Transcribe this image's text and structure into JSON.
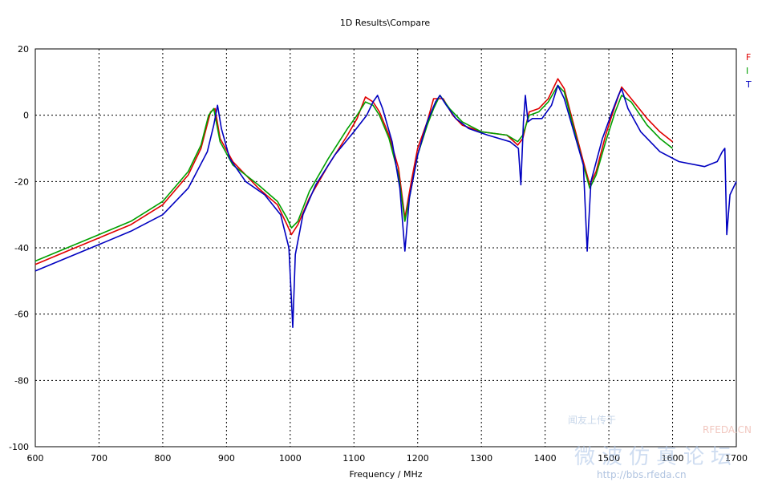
{
  "chart_data": {
    "type": "line",
    "title": "1D Results\\Compare",
    "xlabel": "Frequency / MHz",
    "ylabel": "",
    "xlim": [
      600,
      1700
    ],
    "ylim": [
      -100,
      20
    ],
    "xticks": [
      600,
      700,
      800,
      900,
      1000,
      1100,
      1200,
      1300,
      1400,
      1500,
      1600,
      1700
    ],
    "yticks": [
      -100,
      -80,
      -60,
      -40,
      -20,
      0,
      20
    ],
    "grid": true,
    "legend_placement": "right",
    "series": [
      {
        "name": "F",
        "color": "#e00000",
        "points": [
          [
            600,
            -45
          ],
          [
            650,
            -41
          ],
          [
            700,
            -37
          ],
          [
            750,
            -33
          ],
          [
            800,
            -27
          ],
          [
            840,
            -18
          ],
          [
            860,
            -10
          ],
          [
            875,
            1
          ],
          [
            882,
            2
          ],
          [
            890,
            -7
          ],
          [
            910,
            -14
          ],
          [
            950,
            -22
          ],
          [
            980,
            -27
          ],
          [
            995,
            -33
          ],
          [
            1002,
            -36
          ],
          [
            1012,
            -33
          ],
          [
            1030,
            -25
          ],
          [
            1060,
            -15
          ],
          [
            1090,
            -6
          ],
          [
            1105,
            -1
          ],
          [
            1118,
            5.5
          ],
          [
            1130,
            4
          ],
          [
            1140,
            1
          ],
          [
            1155,
            -6
          ],
          [
            1170,
            -16
          ],
          [
            1180,
            -31
          ],
          [
            1190,
            -20
          ],
          [
            1200,
            -10
          ],
          [
            1215,
            -2
          ],
          [
            1225,
            5
          ],
          [
            1240,
            5
          ],
          [
            1255,
            0
          ],
          [
            1270,
            -3
          ],
          [
            1300,
            -5
          ],
          [
            1340,
            -6
          ],
          [
            1357,
            -9
          ],
          [
            1365,
            -7
          ],
          [
            1375,
            1
          ],
          [
            1390,
            2
          ],
          [
            1405,
            5
          ],
          [
            1420,
            11
          ],
          [
            1430,
            8
          ],
          [
            1445,
            -3
          ],
          [
            1460,
            -14
          ],
          [
            1470,
            -21
          ],
          [
            1480,
            -17
          ],
          [
            1495,
            -6
          ],
          [
            1510,
            3
          ],
          [
            1520,
            8.5
          ],
          [
            1535,
            5
          ],
          [
            1560,
            -1
          ],
          [
            1580,
            -5
          ],
          [
            1600,
            -8
          ]
        ]
      },
      {
        "name": "I",
        "color": "#00a000",
        "points": [
          [
            600,
            -44
          ],
          [
            650,
            -40
          ],
          [
            700,
            -36
          ],
          [
            750,
            -32
          ],
          [
            800,
            -26
          ],
          [
            840,
            -17
          ],
          [
            860,
            -9
          ],
          [
            872,
            0
          ],
          [
            880,
            2
          ],
          [
            890,
            -8
          ],
          [
            910,
            -15
          ],
          [
            950,
            -21
          ],
          [
            980,
            -26
          ],
          [
            995,
            -31
          ],
          [
            1002,
            -34
          ],
          [
            1012,
            -32
          ],
          [
            1030,
            -23
          ],
          [
            1060,
            -13
          ],
          [
            1090,
            -4
          ],
          [
            1105,
            0
          ],
          [
            1118,
            4
          ],
          [
            1130,
            3
          ],
          [
            1140,
            0
          ],
          [
            1155,
            -7
          ],
          [
            1170,
            -18
          ],
          [
            1180,
            -32
          ],
          [
            1190,
            -22
          ],
          [
            1200,
            -12
          ],
          [
            1215,
            -3
          ],
          [
            1225,
            2
          ],
          [
            1235,
            6
          ],
          [
            1250,
            2
          ],
          [
            1270,
            -2
          ],
          [
            1300,
            -5
          ],
          [
            1340,
            -6
          ],
          [
            1357,
            -8
          ],
          [
            1365,
            -6
          ],
          [
            1375,
            0
          ],
          [
            1390,
            1
          ],
          [
            1405,
            4
          ],
          [
            1420,
            9
          ],
          [
            1430,
            7
          ],
          [
            1445,
            -4
          ],
          [
            1460,
            -15
          ],
          [
            1470,
            -22
          ],
          [
            1480,
            -18
          ],
          [
            1495,
            -8
          ],
          [
            1510,
            1
          ],
          [
            1520,
            6
          ],
          [
            1535,
            4
          ],
          [
            1560,
            -3
          ],
          [
            1580,
            -7
          ],
          [
            1600,
            -10
          ]
        ]
      },
      {
        "name": "T",
        "color": "#0000c0",
        "points": [
          [
            600,
            -47
          ],
          [
            650,
            -43
          ],
          [
            700,
            -39
          ],
          [
            750,
            -35
          ],
          [
            800,
            -30
          ],
          [
            840,
            -22
          ],
          [
            870,
            -11
          ],
          [
            880,
            -3
          ],
          [
            886,
            3
          ],
          [
            892,
            -4
          ],
          [
            905,
            -13
          ],
          [
            930,
            -20
          ],
          [
            960,
            -24
          ],
          [
            985,
            -30
          ],
          [
            998,
            -40
          ],
          [
            1004,
            -64
          ],
          [
            1008,
            -42
          ],
          [
            1020,
            -30
          ],
          [
            1040,
            -21
          ],
          [
            1070,
            -12
          ],
          [
            1100,
            -5
          ],
          [
            1120,
            0
          ],
          [
            1130,
            4
          ],
          [
            1137,
            6
          ],
          [
            1145,
            2
          ],
          [
            1160,
            -8
          ],
          [
            1172,
            -22
          ],
          [
            1180,
            -41
          ],
          [
            1187,
            -25
          ],
          [
            1200,
            -12
          ],
          [
            1215,
            -2
          ],
          [
            1228,
            4
          ],
          [
            1235,
            6
          ],
          [
            1245,
            3
          ],
          [
            1260,
            -1
          ],
          [
            1280,
            -4
          ],
          [
            1310,
            -6
          ],
          [
            1345,
            -8
          ],
          [
            1358,
            -10
          ],
          [
            1362,
            -21
          ],
          [
            1366,
            -2
          ],
          [
            1369,
            6
          ],
          [
            1373,
            -2
          ],
          [
            1380,
            -1
          ],
          [
            1395,
            -1
          ],
          [
            1410,
            3
          ],
          [
            1420,
            9
          ],
          [
            1430,
            5
          ],
          [
            1445,
            -5
          ],
          [
            1460,
            -15
          ],
          [
            1466,
            -41
          ],
          [
            1472,
            -20
          ],
          [
            1490,
            -7
          ],
          [
            1505,
            1
          ],
          [
            1515,
            6
          ],
          [
            1520,
            8
          ],
          [
            1530,
            2
          ],
          [
            1550,
            -5
          ],
          [
            1580,
            -11
          ],
          [
            1610,
            -14
          ],
          [
            1650,
            -15.5
          ],
          [
            1670,
            -14
          ],
          [
            1678,
            -11
          ],
          [
            1682,
            -10
          ],
          [
            1685,
            -36
          ],
          [
            1690,
            -24
          ],
          [
            1700,
            -20
          ]
        ]
      }
    ]
  },
  "watermark": {
    "brand": "RFEDA.CN",
    "line1": "闻友上传于",
    "line2": "微波仿真论坛",
    "url": "http://bbs.rfeda.cn"
  }
}
